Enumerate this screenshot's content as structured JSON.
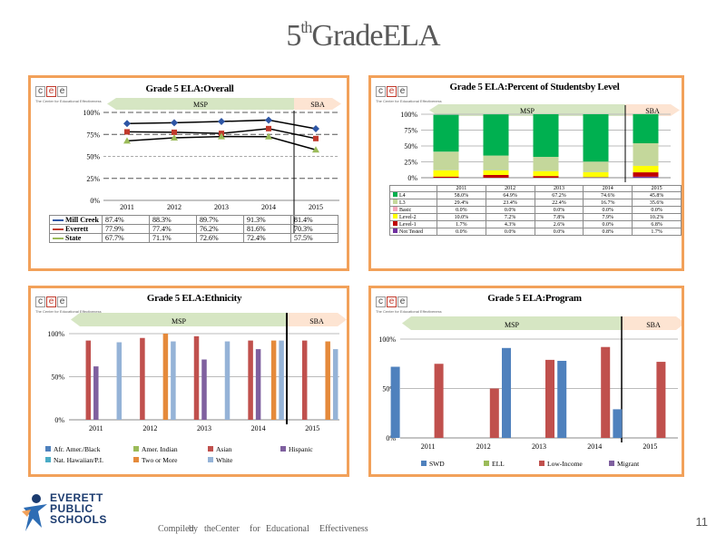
{
  "slide": {
    "title_main": "5",
    "title_sup": "th",
    "title_rest": "GradeELA",
    "page_number": "11",
    "footer_compiled": [
      "Compiled",
      "by",
      "theCenter",
      "for",
      "Educational",
      "Effectiveness"
    ],
    "logo_lines": [
      "EVERETT",
      "PUBLIC",
      "SCHOOLS"
    ]
  },
  "logo": {
    "letters": [
      "c",
      "e",
      "e"
    ],
    "subtitle": "The Center for Educational Effectiveness"
  },
  "colors": {
    "border": "#f2a15a",
    "msp": "#d6e6c3",
    "sba": "#fde4d2",
    "green": "#00b050",
    "light_green": "#c4d79b"
  },
  "bands": {
    "msp": "MSP",
    "sba": "SBA"
  },
  "chart_data": [
    {
      "id": "overall",
      "type": "line",
      "title": "Grade 5 ELA:Overall",
      "x": [
        "2011",
        "2012",
        "2013",
        "2014",
        "2015"
      ],
      "yticks": [
        "0%",
        "25%",
        "50%",
        "75%",
        "100%"
      ],
      "ylim": [
        0,
        100
      ],
      "series": [
        {
          "name": "Mill Creek",
          "values": [
            87.4,
            88.3,
            89.7,
            91.3,
            81.4
          ],
          "labels": [
            "87.4%",
            "88.3%",
            "89.7%",
            "91.3%",
            "81.4%"
          ],
          "color": "#2e56a5",
          "marker": "diamond"
        },
        {
          "name": "Everett",
          "values": [
            77.9,
            77.4,
            76.2,
            81.6,
            70.3
          ],
          "labels": [
            "77.9%",
            "77.4%",
            "76.2%",
            "81.6%",
            "70.3%"
          ],
          "color": "#c0392b",
          "marker": "square"
        },
        {
          "name": "State",
          "values": [
            67.7,
            71.1,
            72.6,
            72.4,
            57.5
          ],
          "labels": [
            "67.7%",
            "71.1%",
            "72.6%",
            "72.4%",
            "57.5%"
          ],
          "color": "#9bbb59",
          "marker": "triangle"
        }
      ]
    },
    {
      "id": "levels",
      "type": "bar",
      "stacked": true,
      "title": "Grade 5 ELA:Percent of Studentsby Level",
      "x": [
        "2011",
        "2012",
        "2013",
        "2014",
        "2015"
      ],
      "yticks": [
        "0%",
        "25%",
        "50%",
        "75%",
        "100%"
      ],
      "ylim": [
        0,
        100
      ],
      "series": [
        {
          "name": "Not Tested",
          "values": [
            0.0,
            0.0,
            0.0,
            0.8,
            1.7
          ],
          "labels": [
            "0.0%",
            "0.0%",
            "0.0%",
            "0.8%",
            "1.7%"
          ],
          "color": "#7030a0"
        },
        {
          "name": "Level-1",
          "values": [
            1.7,
            4.3,
            2.6,
            0.0,
            6.8
          ],
          "labels": [
            "1.7%",
            "4.3%",
            "2.6%",
            "0.0%",
            "6.8%"
          ],
          "color": "#c00000"
        },
        {
          "name": "Level-2",
          "values": [
            10.0,
            7.2,
            7.8,
            7.9,
            10.2
          ],
          "labels": [
            "10.0%",
            "7.2%",
            "7.8%",
            "7.9%",
            "10.2%"
          ],
          "color": "#ffff00"
        },
        {
          "name": "Basic",
          "values": [
            0.0,
            0.0,
            0.0,
            0.0,
            0.0
          ],
          "labels": [
            "0.0%",
            "0.0%",
            "0.0%",
            "0.0%",
            "0.0%"
          ],
          "color": "#f4a6b8"
        },
        {
          "name": "L3",
          "values": [
            29.4,
            23.4,
            22.4,
            16.7,
            35.6
          ],
          "labels": [
            "29.4%",
            "23.4%",
            "22.4%",
            "16.7%",
            "35.6%"
          ],
          "color": "#c4d79b"
        },
        {
          "name": "L4",
          "values": [
            58.0,
            64.9,
            67.2,
            74.6,
            45.8
          ],
          "labels": [
            "58.0%",
            "64.9%",
            "67.2%",
            "74.6%",
            "45.8%"
          ],
          "color": "#00b050"
        }
      ]
    },
    {
      "id": "ethnicity",
      "type": "bar",
      "title": "Grade 5 ELA:Ethnicity",
      "x": [
        "2011",
        "2012",
        "2013",
        "2014",
        "2015"
      ],
      "yticks": [
        "0%",
        "50%",
        "100%"
      ],
      "ylim": [
        0,
        100
      ],
      "series": [
        {
          "name": "Afr. Amer./Black",
          "values": [
            null,
            null,
            null,
            null,
            null
          ],
          "color": "#4f81bd"
        },
        {
          "name": "Amer. Indian",
          "values": [
            null,
            null,
            null,
            null,
            null
          ],
          "color": "#9bbb59"
        },
        {
          "name": "Asian",
          "values": [
            92,
            95,
            97,
            92,
            92
          ],
          "color": "#c0504d"
        },
        {
          "name": "Hispanic",
          "values": [
            62,
            null,
            70,
            82,
            null
          ],
          "color": "#7f609f"
        },
        {
          "name": "Nat. Hawaiian/P.I.",
          "values": [
            null,
            null,
            null,
            null,
            null
          ],
          "color": "#4bacc6"
        },
        {
          "name": "Two or More",
          "values": [
            null,
            100,
            null,
            92,
            91
          ],
          "color": "#e58a3b"
        },
        {
          "name": "White",
          "values": [
            90,
            91,
            91,
            92,
            82
          ],
          "color": "#95b3d7"
        }
      ]
    },
    {
      "id": "program",
      "type": "bar",
      "title": "Grade 5 ELA:Program",
      "x": [
        "2011",
        "2012",
        "2013",
        "2014",
        "2015"
      ],
      "yticks": [
        "0%",
        "50%",
        "100%"
      ],
      "ylim": [
        0,
        100
      ],
      "series": [
        {
          "name": "SWD",
          "values": [
            72,
            null,
            91,
            78,
            29
          ],
          "color": "#4f81bd"
        },
        {
          "name": "ELL",
          "values": [
            null,
            null,
            null,
            null,
            null
          ],
          "color": "#9bbb59"
        },
        {
          "name": "Low-Income",
          "values": [
            75,
            50,
            79,
            92,
            77
          ],
          "color": "#c0504d"
        },
        {
          "name": "Migrant",
          "values": [
            null,
            null,
            null,
            null,
            null
          ],
          "color": "#7f609f"
        }
      ]
    }
  ]
}
